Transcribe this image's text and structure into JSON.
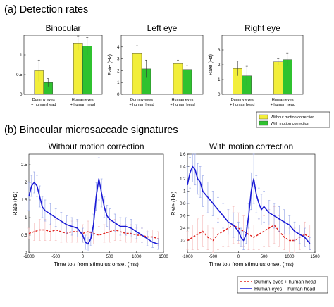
{
  "section_a": "(a) Detection rates",
  "section_b": "(b) Binocular microsaccade signatures",
  "colors": {
    "without_motion_correction": "#f2ee3a",
    "with_motion_correction": "#2fc22f",
    "dummy_line": "#e0201c",
    "human_line": "#1a1ad6",
    "dummy_error": "#f4b6b6",
    "human_error": "#8f9fe6"
  },
  "bar_legend": [
    "Without motion correction",
    "With motion correction"
  ],
  "line_legend": [
    "Dummy eyes + human head",
    "Human eyes + human head"
  ],
  "chart_data": [
    {
      "type": "bar",
      "title": "Binocular",
      "ylabel": "",
      "ylim": [
        0,
        1.5
      ],
      "yticks": [
        0,
        0.5,
        1
      ],
      "categories": [
        [
          "Dummy eyes",
          "+ human head"
        ],
        [
          "Human eyes",
          "+ human head"
        ]
      ],
      "series": [
        {
          "name": "Without motion correction",
          "values": [
            0.6,
            1.3
          ],
          "err": [
            0.27,
            0.18
          ]
        },
        {
          "name": "With motion correction",
          "values": [
            0.3,
            1.22
          ],
          "err": [
            0.1,
            0.22
          ]
        }
      ]
    },
    {
      "type": "bar",
      "title": "Left eye",
      "ylabel": "Rate (Hz)",
      "ylim": [
        0,
        5
      ],
      "yticks": [
        0,
        1,
        2,
        3,
        4
      ],
      "categories": [
        [
          "Dummy eyes",
          "+ human head"
        ],
        [
          "Human eyes",
          "+ human head"
        ]
      ],
      "series": [
        {
          "name": "Without motion correction",
          "values": [
            3.5,
            2.6
          ],
          "err": [
            0.6,
            0.3
          ]
        },
        {
          "name": "With motion correction",
          "values": [
            2.15,
            2.1
          ],
          "err": [
            0.75,
            0.35
          ]
        }
      ]
    },
    {
      "type": "bar",
      "title": "Right eye",
      "ylabel": "Rate (Hz)",
      "ylim": [
        0,
        4
      ],
      "yticks": [
        0,
        1,
        2,
        3
      ],
      "categories": [
        [
          "Dummy eyes",
          "+ human head"
        ],
        [
          "Human eyes",
          "+ human head"
        ]
      ],
      "series": [
        {
          "name": "Without motion correction",
          "values": [
            1.75,
            2.2
          ],
          "err": [
            0.5,
            0.2
          ]
        },
        {
          "name": "With motion correction",
          "values": [
            1.25,
            2.35
          ],
          "err": [
            0.65,
            0.45
          ]
        }
      ]
    },
    {
      "type": "line",
      "title": "Without motion correction",
      "xlabel": "Time to / from stimulus onset (ms)",
      "ylabel": "Rate (Hz)",
      "xlim": [
        -1000,
        1500
      ],
      "ylim": [
        0,
        2.8
      ],
      "xticks": [
        -1000,
        -500,
        0,
        500,
        1000,
        1500
      ],
      "yticks": [
        0,
        0.5,
        1,
        1.5,
        2,
        2.5
      ],
      "series": [
        {
          "name": "Dummy eyes + human head",
          "style": "dashed",
          "x": [
            -1000,
            -900,
            -800,
            -700,
            -600,
            -500,
            -400,
            -300,
            -200,
            -100,
            0,
            100,
            200,
            300,
            400,
            500,
            600,
            700,
            800,
            900,
            1000,
            1100,
            1200,
            1300,
            1400
          ],
          "y": [
            0.55,
            0.6,
            0.65,
            0.65,
            0.6,
            0.65,
            0.6,
            0.55,
            0.6,
            0.6,
            0.55,
            0.6,
            0.55,
            0.5,
            0.55,
            0.6,
            0.65,
            0.6,
            0.55,
            0.55,
            0.5,
            0.5,
            0.45,
            0.45,
            0.4
          ],
          "err": [
            0.15,
            0.25,
            0.3,
            0.3,
            0.25,
            0.3,
            0.3,
            0.25,
            0.3,
            0.3,
            0.25,
            0.3,
            0.3,
            0.25,
            0.25,
            0.3,
            0.3,
            0.25,
            0.25,
            0.25,
            0.2,
            0.2,
            0.2,
            0.2,
            0.2
          ]
        },
        {
          "name": "Human eyes + human head",
          "style": "solid",
          "x": [
            -1000,
            -950,
            -900,
            -850,
            -800,
            -750,
            -700,
            -600,
            -500,
            -400,
            -300,
            -200,
            -100,
            0,
            50,
            100,
            150,
            200,
            250,
            300,
            350,
            400,
            450,
            500,
            600,
            700,
            800,
            900,
            1000,
            1100,
            1200,
            1300,
            1400
          ],
          "y": [
            1.6,
            1.9,
            2.0,
            1.9,
            1.6,
            1.3,
            1.2,
            1.1,
            1.0,
            0.9,
            0.8,
            0.75,
            0.7,
            0.5,
            0.3,
            0.25,
            0.4,
            0.8,
            1.6,
            2.1,
            1.7,
            1.3,
            1.05,
            0.95,
            0.85,
            0.75,
            0.75,
            0.7,
            0.6,
            0.5,
            0.4,
            0.3,
            0.25
          ],
          "err": [
            0.4,
            0.3,
            0.3,
            0.3,
            0.3,
            0.3,
            0.3,
            0.3,
            0.25,
            0.25,
            0.25,
            0.25,
            0.25,
            0.2,
            0.2,
            0.2,
            0.2,
            0.3,
            0.4,
            0.6,
            0.4,
            0.3,
            0.3,
            0.3,
            0.25,
            0.25,
            0.25,
            0.25,
            0.2,
            0.2,
            0.2,
            0.15,
            0.15
          ]
        }
      ]
    },
    {
      "type": "line",
      "title": "With motion correction",
      "xlabel": "Time to / from stimulus onset (ms)",
      "ylabel": "Rate (Hz)",
      "xlim": [
        -1000,
        1500
      ],
      "ylim": [
        0,
        1.6
      ],
      "xticks": [
        -1000,
        -500,
        0,
        500,
        1000,
        1500
      ],
      "yticks": [
        0.2,
        0.4,
        0.6,
        0.8,
        1,
        1.2,
        1.4,
        1.6
      ],
      "series": [
        {
          "name": "Dummy eyes + human head",
          "style": "dashed",
          "x": [
            -1000,
            -900,
            -800,
            -700,
            -600,
            -500,
            -400,
            -300,
            -200,
            -100,
            0,
            100,
            200,
            300,
            400,
            500,
            600,
            700,
            800,
            900,
            1000,
            1100,
            1200,
            1300,
            1400
          ],
          "y": [
            0.2,
            0.25,
            0.3,
            0.35,
            0.25,
            0.2,
            0.3,
            0.35,
            0.4,
            0.45,
            0.4,
            0.35,
            0.3,
            0.25,
            0.3,
            0.35,
            0.4,
            0.45,
            0.35,
            0.25,
            0.2,
            0.2,
            0.25,
            0.3,
            0.25
          ],
          "err": [
            0.15,
            0.2,
            0.25,
            0.25,
            0.2,
            0.2,
            0.25,
            0.25,
            0.3,
            0.3,
            0.25,
            0.25,
            0.25,
            0.2,
            0.25,
            0.25,
            0.3,
            0.3,
            0.25,
            0.2,
            0.2,
            0.2,
            0.2,
            0.2,
            0.2
          ]
        },
        {
          "name": "Human eyes + human head",
          "style": "solid",
          "x": [
            -1000,
            -950,
            -900,
            -850,
            -800,
            -750,
            -700,
            -600,
            -500,
            -400,
            -300,
            -200,
            -100,
            0,
            50,
            100,
            150,
            200,
            250,
            300,
            350,
            400,
            450,
            500,
            600,
            700,
            800,
            900,
            1000,
            1100,
            1200,
            1300,
            1400
          ],
          "y": [
            1.1,
            1.3,
            1.4,
            1.35,
            1.2,
            1.15,
            1.0,
            0.9,
            0.8,
            0.7,
            0.6,
            0.5,
            0.45,
            0.35,
            0.25,
            0.2,
            0.3,
            0.6,
            1.0,
            1.2,
            0.95,
            0.8,
            0.7,
            0.75,
            0.65,
            0.6,
            0.55,
            0.5,
            0.45,
            0.35,
            0.3,
            0.25,
            0.15
          ],
          "err": [
            0.3,
            0.25,
            0.25,
            0.25,
            0.25,
            0.25,
            0.25,
            0.25,
            0.2,
            0.2,
            0.2,
            0.2,
            0.2,
            0.15,
            0.15,
            0.15,
            0.15,
            0.2,
            0.3,
            0.4,
            0.3,
            0.25,
            0.25,
            0.25,
            0.2,
            0.2,
            0.2,
            0.2,
            0.15,
            0.15,
            0.15,
            0.15,
            0.1
          ]
        }
      ]
    }
  ]
}
